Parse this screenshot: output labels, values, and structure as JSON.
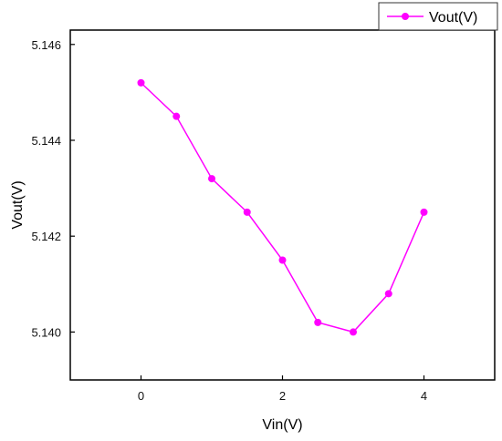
{
  "chart_data": {
    "type": "line",
    "xlabel": "Vin(V)",
    "ylabel": "Vout(V)",
    "xlim": [
      -1,
      5
    ],
    "ylim": [
      5.139,
      5.1463
    ],
    "x_ticks": [
      0,
      2,
      4
    ],
    "x_tick_labels": [
      "0",
      "2",
      "4"
    ],
    "y_ticks": [
      5.14,
      5.142,
      5.144,
      5.146
    ],
    "y_tick_labels": [
      "5.140",
      "5.142",
      "5.144",
      "5.146"
    ],
    "grid": false,
    "legend_position": "top-right",
    "series": [
      {
        "name": "Vout(V)",
        "color": "#ff00ff",
        "marker": "circle",
        "x": [
          0,
          0.5,
          1,
          1.5,
          2,
          2.5,
          3,
          3.5,
          4
        ],
        "y": [
          5.1452,
          5.1445,
          5.1432,
          5.1425,
          5.1415,
          5.1402,
          5.14,
          5.1408,
          5.1425
        ]
      }
    ]
  }
}
